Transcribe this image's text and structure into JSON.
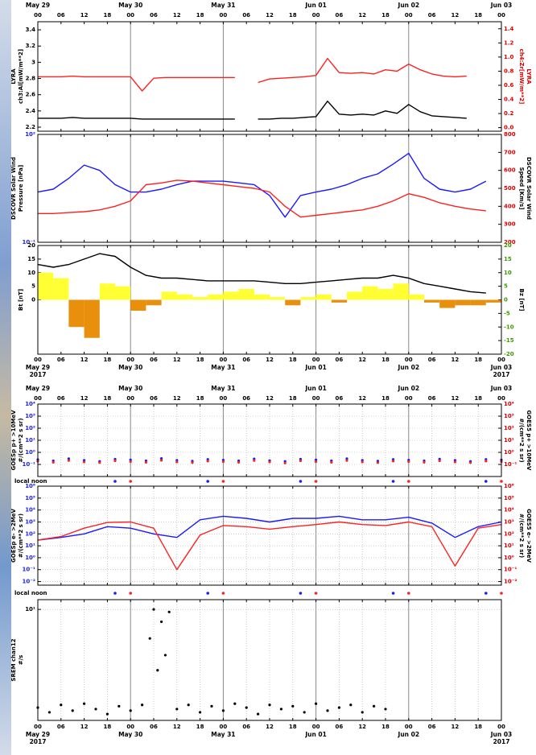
{
  "chart_data": {
    "type": "multi-panel",
    "xlim": [
      0,
      120
    ],
    "xticks": [
      {
        "value": 0,
        "label": "00"
      },
      {
        "value": 6,
        "label": "06"
      },
      {
        "value": 12,
        "label": "12"
      },
      {
        "value": 18,
        "label": "18"
      },
      {
        "value": 24,
        "label": "00"
      },
      {
        "value": 30,
        "label": "06"
      },
      {
        "value": 36,
        "label": "12"
      },
      {
        "value": 42,
        "label": "18"
      },
      {
        "value": 48,
        "label": "00"
      },
      {
        "value": 54,
        "label": "06"
      },
      {
        "value": 60,
        "label": "12"
      },
      {
        "value": 66,
        "label": "18"
      },
      {
        "value": 72,
        "label": "00"
      },
      {
        "value": 78,
        "label": "06"
      },
      {
        "value": 84,
        "label": "12"
      },
      {
        "value": 90,
        "label": "18"
      },
      {
        "value": 96,
        "label": "00"
      },
      {
        "value": 102,
        "label": "06"
      },
      {
        "value": 108,
        "label": "12"
      },
      {
        "value": 114,
        "label": "18"
      },
      {
        "value": 120,
        "label": "00"
      }
    ],
    "date_ticks": [
      {
        "value": 0,
        "label": "May 29"
      },
      {
        "value": 24,
        "label": "May 30"
      },
      {
        "value": 48,
        "label": "May 31"
      },
      {
        "value": 72,
        "label": "Jun 01"
      },
      {
        "value": 96,
        "label": "Jun 02"
      },
      {
        "value": 120,
        "label": "Jun 03"
      }
    ],
    "year": "2017",
    "local_noon": {
      "label": "local noon",
      "markers": [
        {
          "color": "#1a1aff",
          "x": [
            20,
            44,
            68,
            92,
            116
          ]
        },
        {
          "color": "#ff2020",
          "x": [
            24,
            48,
            72,
            96,
            120
          ]
        }
      ]
    },
    "panels": [
      {
        "type": "line",
        "grid": "midnight",
        "ylabel": [
          "LYRA",
          "ch3:Al[mW/m**2]"
        ],
        "ylabel_color": "#000000",
        "y2label": [
          "LYRA",
          "ch4:Zr[mW/m**2]"
        ],
        "y2label_color": "#e00000",
        "ylim": [
          2.15,
          3.5
        ],
        "yticks": [
          2.2,
          2.4,
          2.6,
          2.8,
          3.0,
          3.2,
          3.4
        ],
        "ytick_color": "#000000",
        "y2lim": [
          -0.05,
          1.5
        ],
        "y2ticks": [
          {
            "value": 0,
            "label": "0.0"
          },
          0.2,
          0.4,
          0.6,
          0.8,
          {
            "value": 1,
            "label": "1.0"
          },
          1.2,
          1.4
        ],
        "y2tick_color": "#e00000",
        "x": [
          0,
          3,
          6,
          9,
          12,
          15,
          18,
          21,
          24,
          27,
          30,
          33,
          36,
          39,
          42,
          45,
          48,
          51,
          54,
          57,
          60,
          63,
          66,
          69,
          72,
          75,
          78,
          81,
          84,
          87,
          90,
          93,
          96,
          99,
          102,
          105,
          108,
          111
        ],
        "series": [
          {
            "type": "line",
            "color": "#000000",
            "values": [
              2.31,
              2.31,
              2.31,
              2.32,
              2.31,
              2.31,
              2.31,
              2.31,
              2.31,
              2.3,
              2.3,
              2.3,
              2.3,
              2.3,
              2.3,
              2.3,
              2.3,
              2.3,
              null,
              2.3,
              2.3,
              2.31,
              2.31,
              2.32,
              2.33,
              2.52,
              2.36,
              2.35,
              2.36,
              2.35,
              2.4,
              2.37,
              2.48,
              2.39,
              2.34,
              2.33,
              2.32,
              2.31
            ]
          },
          {
            "type": "line",
            "color": "#ff2020",
            "axis": "y2",
            "values": [
              0.72,
              0.72,
              0.72,
              0.73,
              0.72,
              0.72,
              0.72,
              0.72,
              0.72,
              0.52,
              0.7,
              0.71,
              0.71,
              0.71,
              0.71,
              0.71,
              0.71,
              0.71,
              null,
              0.64,
              0.69,
              0.7,
              0.71,
              0.72,
              0.74,
              0.98,
              0.78,
              0.77,
              0.78,
              0.76,
              0.82,
              0.8,
              0.9,
              0.82,
              0.76,
              0.73,
              0.72,
              0.73
            ]
          }
        ]
      },
      {
        "type": "line",
        "grid": "midnight",
        "ylabel": [
          "DSCOVR Solar Wind",
          "Pressure [nPa]"
        ],
        "ylabel_color": "#000000",
        "y2label": [
          "DSCOVR Solar Wind",
          "Speed [Km/s]"
        ],
        "y2label_color": "#000000",
        "log_y": true,
        "ylim": [
          0.1,
          100
        ],
        "yticks": [
          {
            "value": 0.1,
            "label": "10⁻¹"
          },
          {
            "value": 100,
            "label": "10²"
          }
        ],
        "ytick_color": "#1a1aff",
        "y2lim": [
          200,
          800
        ],
        "y2ticks": [
          200,
          300,
          400,
          500,
          600,
          700,
          800
        ],
        "y2tick_color": "#e00000",
        "x": [
          0,
          4,
          8,
          12,
          16,
          20,
          24,
          28,
          32,
          36,
          40,
          44,
          48,
          52,
          56,
          60,
          64,
          68,
          72,
          76,
          80,
          84,
          88,
          92,
          96,
          100,
          104,
          108,
          112,
          116
        ],
        "series": [
          {
            "type": "line",
            "color": "#1a1aff",
            "values": [
              2.5,
              3,
              6,
              14,
              10,
              4,
              2.5,
              2.5,
              3,
              4,
              5,
              5,
              5,
              4.5,
              4,
              2,
              0.5,
              2,
              2.5,
              3,
              4,
              6,
              8,
              15,
              30,
              6,
              3,
              2.5,
              3,
              5
            ]
          },
          {
            "type": "line",
            "color": "#ff2020",
            "axis": "y2",
            "values": [
              360,
              360,
              365,
              370,
              380,
              400,
              430,
              520,
              530,
              545,
              540,
              530,
              520,
              510,
              500,
              480,
              400,
              340,
              350,
              360,
              370,
              380,
              400,
              430,
              470,
              450,
              420,
              400,
              385,
              375
            ]
          }
        ]
      },
      {
        "type": "line",
        "grid": "midnight",
        "ylabel": [
          "Bt [nT]"
        ],
        "ylabel_color": "#000000",
        "y2label": [
          "Bz [nT]"
        ],
        "y2label_color": "#000000",
        "ylim": [
          -20,
          20
        ],
        "yticks": [
          0,
          5,
          10,
          15,
          20
        ],
        "ytick_color": "#000000",
        "y2lim": [
          -20,
          20
        ],
        "y2ticks": [
          -20,
          -15,
          -10,
          -5,
          0,
          5,
          10,
          15,
          20
        ],
        "y2tick_color": "#3a9a00",
        "x": [
          0,
          4,
          8,
          12,
          16,
          20,
          24,
          28,
          32,
          36,
          40,
          44,
          48,
          52,
          56,
          60,
          64,
          68,
          72,
          76,
          80,
          84,
          88,
          92,
          96,
          100,
          104,
          108,
          112,
          116
        ],
        "series": [
          {
            "type": "area",
            "color": "#ffff33",
            "negative_color": "#e8900c",
            "axis": "y2",
            "values": [
              10,
              8,
              -10,
              -14,
              6,
              5,
              -4,
              -2,
              3,
              2,
              1,
              2,
              3,
              4,
              2,
              1,
              -2,
              1,
              2,
              -1,
              3,
              5,
              4,
              6,
              2,
              -1,
              -3,
              -2,
              -2,
              -1
            ]
          },
          {
            "type": "line",
            "color": "#000000",
            "values": [
              13,
              12,
              13,
              15,
              17,
              16,
              12,
              9,
              8,
              8,
              7.5,
              7,
              7,
              7,
              7,
              6.5,
              6,
              6,
              6.5,
              7,
              7.5,
              8,
              8,
              9,
              8,
              6,
              5,
              4,
              3,
              2.5
            ]
          }
        ]
      },
      {
        "type": "scatter",
        "grid": "all",
        "ylabel": [
          "GOESp p+ >10MeV",
          "#/(cm**2 s sr)"
        ],
        "ylabel_color": "#000000",
        "y2label": [
          "GOES5 p+ >10MeV",
          "#/(cm**2 s sr)"
        ],
        "y2label_color": "#000000",
        "log_y": true,
        "ylim": [
          0.01,
          10000
        ],
        "yticks": [
          {
            "value": 0.1,
            "label": "10⁻¹"
          },
          {
            "value": 1,
            "label": "10⁰"
          },
          {
            "value": 10,
            "label": "10¹"
          },
          {
            "value": 100,
            "label": "10²"
          },
          {
            "value": 1000,
            "label": "10³"
          },
          {
            "value": 10000,
            "label": "10⁴"
          }
        ],
        "ytick_color": "#1a1aff",
        "log_y2": true,
        "y2lim": [
          0.01,
          10000
        ],
        "y2ticks": [
          {
            "value": 0.1,
            "label": "10⁻¹"
          },
          {
            "value": 1,
            "label": "10⁰"
          },
          {
            "value": 10,
            "label": "10¹"
          },
          {
            "value": 100,
            "label": "10²"
          },
          {
            "value": 1000,
            "label": "10³"
          },
          {
            "value": 10000,
            "label": "10⁴"
          }
        ],
        "y2tick_color": "#e00000",
        "x": [
          0,
          4,
          8,
          12,
          16,
          20,
          24,
          28,
          32,
          36,
          40,
          44,
          48,
          52,
          56,
          60,
          64,
          68,
          72,
          76,
          80,
          84,
          88,
          92,
          96,
          100,
          104,
          108,
          112,
          116,
          120
        ],
        "series": [
          {
            "type": "scatter",
            "color": "#1a1aff",
            "values": [
              0.25,
              0.2,
              0.3,
              0.22,
              0.18,
              0.27,
              0.24,
              0.2,
              0.31,
              0.22,
              0.19,
              0.26,
              0.23,
              0.2,
              0.29,
              0.21,
              0.18,
              0.27,
              0.24,
              0.2,
              0.3,
              0.22,
              0.19,
              0.26,
              0.23,
              0.2,
              0.28,
              0.22,
              0.18,
              0.26,
              0.24
            ]
          },
          {
            "type": "scatter",
            "color": "#ff2020",
            "axis": "y2",
            "values": [
              0.18,
              0.15,
              0.21,
              0.16,
              0.14,
              0.2,
              0.17,
              0.15,
              0.22,
              0.16,
              0.14,
              0.19,
              0.17,
              0.15,
              0.21,
              0.16,
              0.13,
              0.2,
              0.17,
              0.15,
              0.21,
              0.16,
              0.14,
              0.19,
              0.17,
              0.15,
              0.2,
              0.16,
              0.14,
              0.19,
              0.17
            ]
          }
        ]
      },
      {
        "type": "line",
        "grid": "all",
        "ylabel": [
          "GOESp e- >2MeV",
          "#/(cm**2 s sr)"
        ],
        "ylabel_color": "#000000",
        "y2label": [
          "GOES5 e- >2MeV",
          "#/(cm**2 s sr)"
        ],
        "y2label_color": "#000000",
        "log_y": true,
        "ylim": [
          0.005,
          1000000
        ],
        "yticks": [
          {
            "value": 0.01,
            "label": "10⁻²"
          },
          {
            "value": 0.1,
            "label": "10⁻¹"
          },
          {
            "value": 1,
            "label": "10⁰"
          },
          {
            "value": 10,
            "label": "10¹"
          },
          {
            "value": 100,
            "label": "10²"
          },
          {
            "value": 1000,
            "label": "10³"
          },
          {
            "value": 10000,
            "label": "10⁴"
          },
          {
            "value": 100000,
            "label": "10⁵"
          },
          {
            "value": 1000000,
            "label": "10⁶"
          }
        ],
        "ytick_color": "#1a1aff",
        "log_y2": true,
        "y2lim": [
          0.005,
          1000000
        ],
        "y2ticks": [
          {
            "value": 0.01,
            "label": "10⁻²"
          },
          {
            "value": 0.1,
            "label": "10⁻¹"
          },
          {
            "value": 1,
            "label": "10⁰"
          },
          {
            "value": 10,
            "label": "10¹"
          },
          {
            "value": 100,
            "label": "10²"
          },
          {
            "value": 1000,
            "label": "10³"
          },
          {
            "value": 10000,
            "label": "10⁴"
          },
          {
            "value": 100000,
            "label": "10⁵"
          },
          {
            "value": 1000000,
            "label": "10⁶"
          }
        ],
        "y2tick_color": "#e00000",
        "x": [
          0,
          6,
          12,
          18,
          24,
          30,
          36,
          42,
          48,
          54,
          60,
          66,
          72,
          78,
          84,
          90,
          96,
          102,
          108,
          114,
          120
        ],
        "series": [
          {
            "type": "line",
            "color": "#1a1aff",
            "values": [
              30,
              50,
              100,
              400,
              300,
              100,
              50,
              1500,
              3000,
              2000,
              1000,
              2000,
              2000,
              3000,
              1500,
              1500,
              2500,
              800,
              50,
              400,
              1000
            ]
          },
          {
            "type": "line",
            "color": "#ff2020",
            "axis": "y2",
            "values": [
              30,
              60,
              300,
              900,
              1000,
              300,
              0.1,
              80,
              500,
              400,
              250,
              400,
              600,
              1000,
              600,
              500,
              1000,
              400,
              0.2,
              300,
              600
            ]
          }
        ]
      },
      {
        "type": "scatter",
        "grid": "all",
        "ylabel": [
          "SREM chan12",
          "#/s"
        ],
        "ylabel_color": "#000000",
        "log_y": true,
        "ylim": [
          0.1,
          15
        ],
        "yticks": [
          {
            "value": 10,
            "label": "10¹"
          }
        ],
        "ytick_color": "#000000",
        "x": [
          0,
          3,
          6,
          9,
          12,
          15,
          18,
          21,
          24,
          27,
          29,
          30,
          31,
          32,
          33,
          34,
          36,
          39,
          42,
          45,
          48,
          51,
          54,
          57,
          60,
          63,
          66,
          69,
          72,
          75,
          78,
          81,
          84,
          87,
          90
        ],
        "series": [
          {
            "type": "scatter",
            "color": "#000000",
            "values": [
              0.17,
              0.14,
              0.19,
              0.15,
              0.2,
              0.16,
              0.13,
              0.18,
              0.15,
              0.19,
              3,
              10,
              0.8,
              6,
              1.5,
              9,
              0.16,
              0.19,
              0.14,
              0.18,
              0.15,
              0.2,
              0.17,
              0.13,
              0.19,
              0.16,
              0.18,
              0.14,
              0.2,
              0.15,
              0.17,
              0.19,
              0.14,
              0.18,
              0.16
            ]
          }
        ]
      }
    ]
  }
}
